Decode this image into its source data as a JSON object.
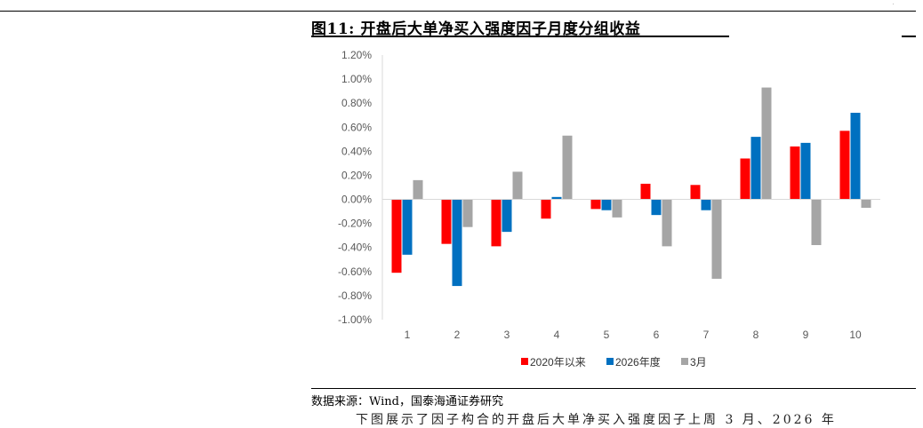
{
  "page": {
    "title": "图11:  开盘后大单净买入强度因子月度分组收益",
    "source": "数据来源：Wind，国泰海通证券研究",
    "trailing_text": "下图展示了因子构合的开盘后大单净买入强度因子上周  3 月、2026 年"
  },
  "chart_data": {
    "type": "bar",
    "categories": [
      "1",
      "2",
      "3",
      "4",
      "5",
      "6",
      "7",
      "8",
      "9",
      "10"
    ],
    "series": [
      {
        "name": "2020年以来",
        "color": "#FF0000",
        "values": [
          -0.0061,
          -0.0037,
          -0.0039,
          -0.0016,
          -0.0008,
          0.0013,
          0.0012,
          0.0034,
          0.0044,
          0.0057
        ]
      },
      {
        "name": "2026年度",
        "color": "#0070C0",
        "values": [
          -0.0046,
          -0.0072,
          -0.0027,
          0.0002,
          -0.0009,
          -0.0013,
          -0.0009,
          0.0052,
          0.0047,
          0.0072
        ]
      },
      {
        "name": "3月",
        "color": "#A5A5A5",
        "values": [
          0.0016,
          -0.0023,
          0.0023,
          0.0053,
          -0.0015,
          -0.0039,
          -0.0066,
          0.0093,
          -0.0038,
          -0.0007
        ]
      }
    ],
    "ylim": [
      -0.01,
      0.012
    ],
    "yticks": [
      "1.20%",
      "1.00%",
      "0.80%",
      "0.60%",
      "0.40%",
      "0.20%",
      "0.00%",
      "-0.20%",
      "-0.40%",
      "-0.60%",
      "-0.80%",
      "-1.00%"
    ],
    "legend_position": "bottom",
    "grid": false
  }
}
